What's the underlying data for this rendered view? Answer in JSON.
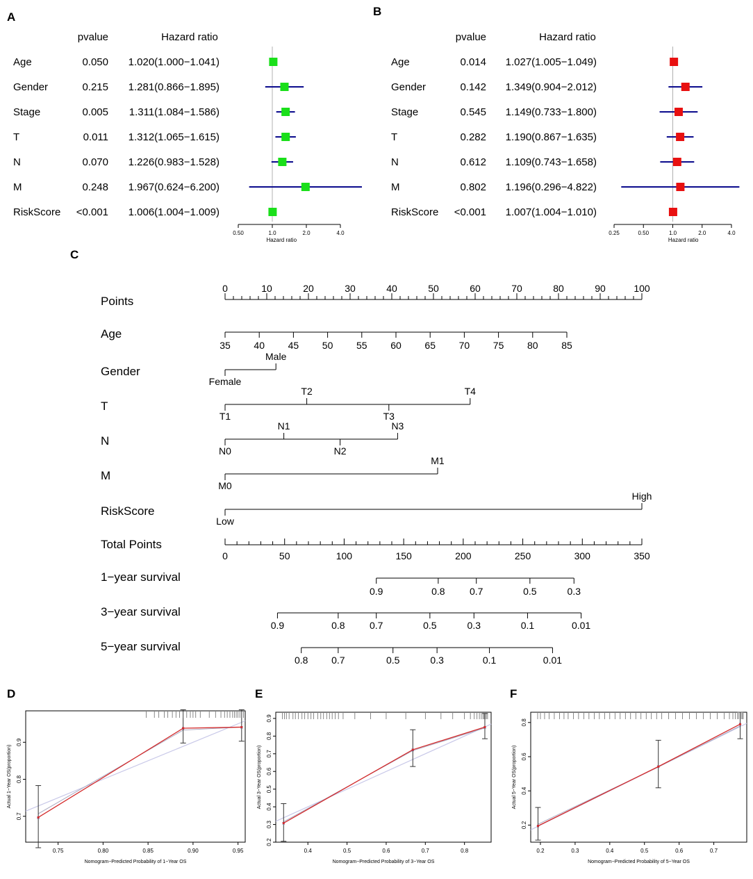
{
  "panels": {
    "A": "A",
    "B": "B",
    "C": "C",
    "D": "D",
    "E": "E",
    "F": "F"
  },
  "colors": {
    "forest_a_box": "#1adf1a",
    "forest_b_box": "#e81010",
    "ci_line": "#0a0a8c",
    "ref_line": "#b0b0b0",
    "calib_line": "#d42a2a",
    "ideal_line": "#c8c8e8",
    "text": "#000000"
  },
  "chart_data": [
    {
      "type": "forest",
      "panel": "A",
      "header_pvalue": "pvalue",
      "header_hr": "Hazard ratio",
      "xlabel": "Hazard ratio",
      "x_scale": "log",
      "ticks": [
        {
          "v": 0.5,
          "label": "0.50"
        },
        {
          "v": 1.0,
          "label": "1.0"
        },
        {
          "v": 2.0,
          "label": "2.0"
        },
        {
          "v": 4.0,
          "label": "4.0"
        }
      ],
      "xlim": [
        0.5,
        4.0
      ],
      "rows": [
        {
          "name": "Age",
          "pvalue": "0.050",
          "hr_text": "1.020(1.000−1.041)",
          "hr": 1.02,
          "lo": 1.0,
          "hi": 1.041
        },
        {
          "name": "Gender",
          "pvalue": "0.215",
          "hr_text": "1.281(0.866−1.895)",
          "hr": 1.281,
          "lo": 0.866,
          "hi": 1.895
        },
        {
          "name": "Stage",
          "pvalue": "0.005",
          "hr_text": "1.311(1.084−1.586)",
          "hr": 1.311,
          "lo": 1.084,
          "hi": 1.586
        },
        {
          "name": "T",
          "pvalue": "0.011",
          "hr_text": "1.312(1.065−1.615)",
          "hr": 1.312,
          "lo": 1.065,
          "hi": 1.615
        },
        {
          "name": "N",
          "pvalue": "0.070",
          "hr_text": "1.226(0.983−1.528)",
          "hr": 1.226,
          "lo": 0.983,
          "hi": 1.528
        },
        {
          "name": "M",
          "pvalue": "0.248",
          "hr_text": "1.967(0.624−6.200)",
          "hr": 1.967,
          "lo": 0.624,
          "hi": 6.2
        },
        {
          "name": "RiskScore",
          "pvalue": "<0.001",
          "hr_text": "1.006(1.004−1.009)",
          "hr": 1.006,
          "lo": 1.004,
          "hi": 1.009
        }
      ]
    },
    {
      "type": "forest",
      "panel": "B",
      "header_pvalue": "pvalue",
      "header_hr": "Hazard ratio",
      "xlabel": "Hazard ratio",
      "x_scale": "log",
      "ticks": [
        {
          "v": 0.25,
          "label": "0.25"
        },
        {
          "v": 0.5,
          "label": "0.50"
        },
        {
          "v": 1.0,
          "label": "1.0"
        },
        {
          "v": 2.0,
          "label": "2.0"
        },
        {
          "v": 4.0,
          "label": "4.0"
        }
      ],
      "xlim": [
        0.25,
        4.0
      ],
      "rows": [
        {
          "name": "Age",
          "pvalue": "0.014",
          "hr_text": "1.027(1.005−1.049)",
          "hr": 1.027,
          "lo": 1.005,
          "hi": 1.049
        },
        {
          "name": "Gender",
          "pvalue": "0.142",
          "hr_text": "1.349(0.904−2.012)",
          "hr": 1.349,
          "lo": 0.904,
          "hi": 2.012
        },
        {
          "name": "Stage",
          "pvalue": "0.545",
          "hr_text": "1.149(0.733−1.800)",
          "hr": 1.149,
          "lo": 0.733,
          "hi": 1.8
        },
        {
          "name": "T",
          "pvalue": "0.282",
          "hr_text": "1.190(0.867−1.635)",
          "hr": 1.19,
          "lo": 0.867,
          "hi": 1.635
        },
        {
          "name": "N",
          "pvalue": "0.612",
          "hr_text": "1.109(0.743−1.658)",
          "hr": 1.109,
          "lo": 0.743,
          "hi": 1.658
        },
        {
          "name": "M",
          "pvalue": "0.802",
          "hr_text": "1.196(0.296−4.822)",
          "hr": 1.196,
          "lo": 0.296,
          "hi": 4.822
        },
        {
          "name": "RiskScore",
          "pvalue": "<0.001",
          "hr_text": "1.007(1.004−1.010)",
          "hr": 1.007,
          "lo": 1.004,
          "hi": 1.01
        }
      ]
    },
    {
      "type": "nomogram",
      "panel": "C",
      "points_scale": {
        "label": "Points",
        "min": 0,
        "max": 100,
        "labels": [
          0,
          10,
          20,
          30,
          40,
          50,
          60,
          70,
          80,
          90,
          100
        ],
        "minor_step": 2
      },
      "total_scale": {
        "label": "Total Points",
        "min": 0,
        "max": 350,
        "labels": [
          0,
          50,
          100,
          150,
          200,
          250,
          300,
          350
        ],
        "minor_step": 10
      },
      "variables": [
        {
          "name": "Age",
          "kind": "continuous",
          "labels": [
            {
              "t": "35",
              "p": 0
            },
            {
              "t": "40",
              "p": 8.2
            },
            {
              "t": "45",
              "p": 16.4
            },
            {
              "t": "50",
              "p": 24.6
            },
            {
              "t": "55",
              "p": 32.8
            },
            {
              "t": "60",
              "p": 41.0
            },
            {
              "t": "65",
              "p": 49.2
            },
            {
              "t": "70",
              "p": 57.4
            },
            {
              "t": "75",
              "p": 65.6
            },
            {
              "t": "80",
              "p": 73.8
            },
            {
              "t": "85",
              "p": 82.0
            }
          ]
        },
        {
          "name": "Gender",
          "kind": "categorical",
          "labels": [
            {
              "t": "Female",
              "p": 0,
              "pos": "below"
            },
            {
              "t": "Male",
              "p": 12.2,
              "pos": "above"
            }
          ]
        },
        {
          "name": "T",
          "kind": "categorical",
          "labels": [
            {
              "t": "T1",
              "p": 0,
              "pos": "below"
            },
            {
              "t": "T2",
              "p": 19.6,
              "pos": "above"
            },
            {
              "t": "T3",
              "p": 39.3,
              "pos": "below"
            },
            {
              "t": "T4",
              "p": 58.8,
              "pos": "above"
            }
          ]
        },
        {
          "name": "N",
          "kind": "categorical",
          "labels": [
            {
              "t": "N0",
              "p": 0,
              "pos": "below"
            },
            {
              "t": "N1",
              "p": 14.1,
              "pos": "above"
            },
            {
              "t": "N2",
              "p": 27.6,
              "pos": "below"
            },
            {
              "t": "N3",
              "p": 41.4,
              "pos": "above"
            }
          ]
        },
        {
          "name": "M",
          "kind": "categorical",
          "labels": [
            {
              "t": "M0",
              "p": 0,
              "pos": "below"
            },
            {
              "t": "M1",
              "p": 51.0,
              "pos": "above"
            }
          ]
        },
        {
          "name": "RiskScore",
          "kind": "categorical",
          "labels": [
            {
              "t": "Low",
              "p": 0,
              "pos": "below"
            },
            {
              "t": "High",
              "p": 100,
              "pos": "above"
            }
          ]
        }
      ],
      "survival": [
        {
          "name": "1−year survival",
          "range_total": [
            127,
            293
          ],
          "labels": [
            {
              "t": "0.9",
              "tot": 127
            },
            {
              "t": "0.8",
              "tot": 179
            },
            {
              "t": "0.7",
              "tot": 211
            },
            {
              "t": "0.5",
              "tot": 256
            },
            {
              "t": "0.3",
              "tot": 293
            }
          ]
        },
        {
          "name": "3−year survival",
          "range_total": [
            44,
            299
          ],
          "labels": [
            {
              "t": "0.9",
              "tot": 44
            },
            {
              "t": "0.8",
              "tot": 95
            },
            {
              "t": "0.7",
              "tot": 127
            },
            {
              "t": "0.5",
              "tot": 172
            },
            {
              "t": "0.3",
              "tot": 209
            },
            {
              "t": "0.1",
              "tot": 254
            },
            {
              "t": "0.01",
              "tot": 299
            }
          ]
        },
        {
          "name": "5−year survival",
          "range_total": [
            64,
            275
          ],
          "labels": [
            {
              "t": "0.8",
              "tot": 64
            },
            {
              "t": "0.7",
              "tot": 95
            },
            {
              "t": "0.5",
              "tot": 141
            },
            {
              "t": "0.3",
              "tot": 178
            },
            {
              "t": "0.1",
              "tot": 222
            },
            {
              "t": "0.01",
              "tot": 275
            }
          ]
        }
      ]
    },
    {
      "type": "calibration",
      "panel": "D",
      "xlabel": "Nomogram−Predicted Probability of 1−Year OS",
      "ylabel": "Actual 1−Year OS(proportion)",
      "xlim": [
        0.714,
        0.958
      ],
      "ylim": [
        0.63,
        0.985
      ],
      "xticks": [
        {
          "v": 0.75,
          "label": "0.75"
        },
        {
          "v": 0.8,
          "label": "0.80"
        },
        {
          "v": 0.85,
          "label": "0.85"
        },
        {
          "v": 0.9,
          "label": "0.90"
        },
        {
          "v": 0.95,
          "label": "0.95"
        }
      ],
      "yticks": [
        {
          "v": 0.7,
          "label": "0.7"
        },
        {
          "v": 0.8,
          "label": "0.8"
        },
        {
          "v": 0.9,
          "label": "0.9"
        }
      ],
      "points": [
        {
          "x": 0.728,
          "y": 0.697,
          "lo": 0.615,
          "hi": 0.783,
          "corr": 0.707
        },
        {
          "x": 0.889,
          "y": 0.938,
          "lo": 0.898,
          "hi": 0.988,
          "corr": 0.933
        },
        {
          "x": 0.954,
          "y": 0.941,
          "lo": 0.903,
          "hi": 0.988,
          "corr": 0.941
        }
      ],
      "rug": [
        0.848,
        0.857,
        0.862,
        0.868,
        0.872,
        0.877,
        0.881,
        0.885,
        0.889,
        0.893,
        0.897,
        0.9,
        0.903,
        0.908,
        0.918,
        0.925,
        0.931,
        0.935,
        0.938,
        0.941,
        0.944,
        0.946,
        0.948,
        0.95,
        0.952,
        0.954,
        0.956
      ]
    },
    {
      "type": "calibration",
      "panel": "E",
      "xlabel": "Nomogram−Predicted Probability of 3−Year OS",
      "ylabel": "Actual 3−Year OS(proportion)",
      "xlim": [
        0.318,
        0.868
      ],
      "ylim": [
        0.2,
        0.935
      ],
      "xticks": [
        {
          "v": 0.4,
          "label": "0.4"
        },
        {
          "v": 0.5,
          "label": "0.5"
        },
        {
          "v": 0.6,
          "label": "0.6"
        },
        {
          "v": 0.7,
          "label": "0.7"
        },
        {
          "v": 0.8,
          "label": "0.8"
        }
      ],
      "yticks": [
        {
          "v": 0.2,
          "label": "0.2"
        },
        {
          "v": 0.3,
          "label": "0.3"
        },
        {
          "v": 0.4,
          "label": "0.4"
        },
        {
          "v": 0.5,
          "label": "0.5"
        },
        {
          "v": 0.6,
          "label": "0.6"
        },
        {
          "v": 0.7,
          "label": "0.7"
        },
        {
          "v": 0.8,
          "label": "0.8"
        },
        {
          "v": 0.9,
          "label": "0.9"
        }
      ],
      "points": [
        {
          "x": 0.338,
          "y": 0.308,
          "lo": 0.205,
          "hi": 0.418,
          "corr": 0.315
        },
        {
          "x": 0.668,
          "y": 0.723,
          "lo": 0.628,
          "hi": 0.836,
          "corr": 0.718
        },
        {
          "x": 0.852,
          "y": 0.851,
          "lo": 0.785,
          "hi": 0.928,
          "corr": 0.846
        }
      ],
      "rug": [
        0.335,
        0.34,
        0.345,
        0.352,
        0.362,
        0.368,
        0.376,
        0.385,
        0.392,
        0.4,
        0.408,
        0.415,
        0.425,
        0.433,
        0.44,
        0.448,
        0.455,
        0.462,
        0.47,
        0.478,
        0.49,
        0.52,
        0.56,
        0.6,
        0.65,
        0.7,
        0.74,
        0.77,
        0.8,
        0.815,
        0.825,
        0.832,
        0.838,
        0.843,
        0.847,
        0.85,
        0.853,
        0.856,
        0.859
      ]
    },
    {
      "type": "calibration",
      "panel": "F",
      "xlabel": "Nomogram−Predicted Probability of 5−Year OS",
      "ylabel": "Actual 5−Year OS(proportion)",
      "xlim": [
        0.172,
        0.795
      ],
      "ylim": [
        0.1,
        0.86
      ],
      "xticks": [
        {
          "v": 0.2,
          "label": "0.2"
        },
        {
          "v": 0.3,
          "label": "0.3"
        },
        {
          "v": 0.4,
          "label": "0.4"
        },
        {
          "v": 0.5,
          "label": "0.5"
        },
        {
          "v": 0.6,
          "label": "0.6"
        },
        {
          "v": 0.7,
          "label": "0.7"
        }
      ],
      "yticks": [
        {
          "v": 0.2,
          "label": "0.2"
        },
        {
          "v": 0.4,
          "label": "0.4"
        },
        {
          "v": 0.6,
          "label": "0.6"
        },
        {
          "v": 0.8,
          "label": "0.8"
        }
      ],
      "points": [
        {
          "x": 0.193,
          "y": 0.195,
          "lo": 0.112,
          "hi": 0.303,
          "corr": 0.205
        },
        {
          "x": 0.54,
          "y": 0.542,
          "lo": 0.418,
          "hi": 0.696,
          "corr": 0.54
        },
        {
          "x": 0.776,
          "y": 0.79,
          "lo": 0.705,
          "hi": 0.86,
          "corr": 0.78
        }
      ],
      "rug": [
        0.192,
        0.2,
        0.212,
        0.225,
        0.24,
        0.255,
        0.268,
        0.28,
        0.295,
        0.31,
        0.325,
        0.34,
        0.355,
        0.37,
        0.385,
        0.4,
        0.415,
        0.43,
        0.445,
        0.46,
        0.475,
        0.49,
        0.505,
        0.52,
        0.535,
        0.55,
        0.57,
        0.59,
        0.61,
        0.63,
        0.65,
        0.67,
        0.69,
        0.71,
        0.73,
        0.745,
        0.755,
        0.762,
        0.768,
        0.772,
        0.776,
        0.779,
        0.782,
        0.785
      ]
    }
  ]
}
